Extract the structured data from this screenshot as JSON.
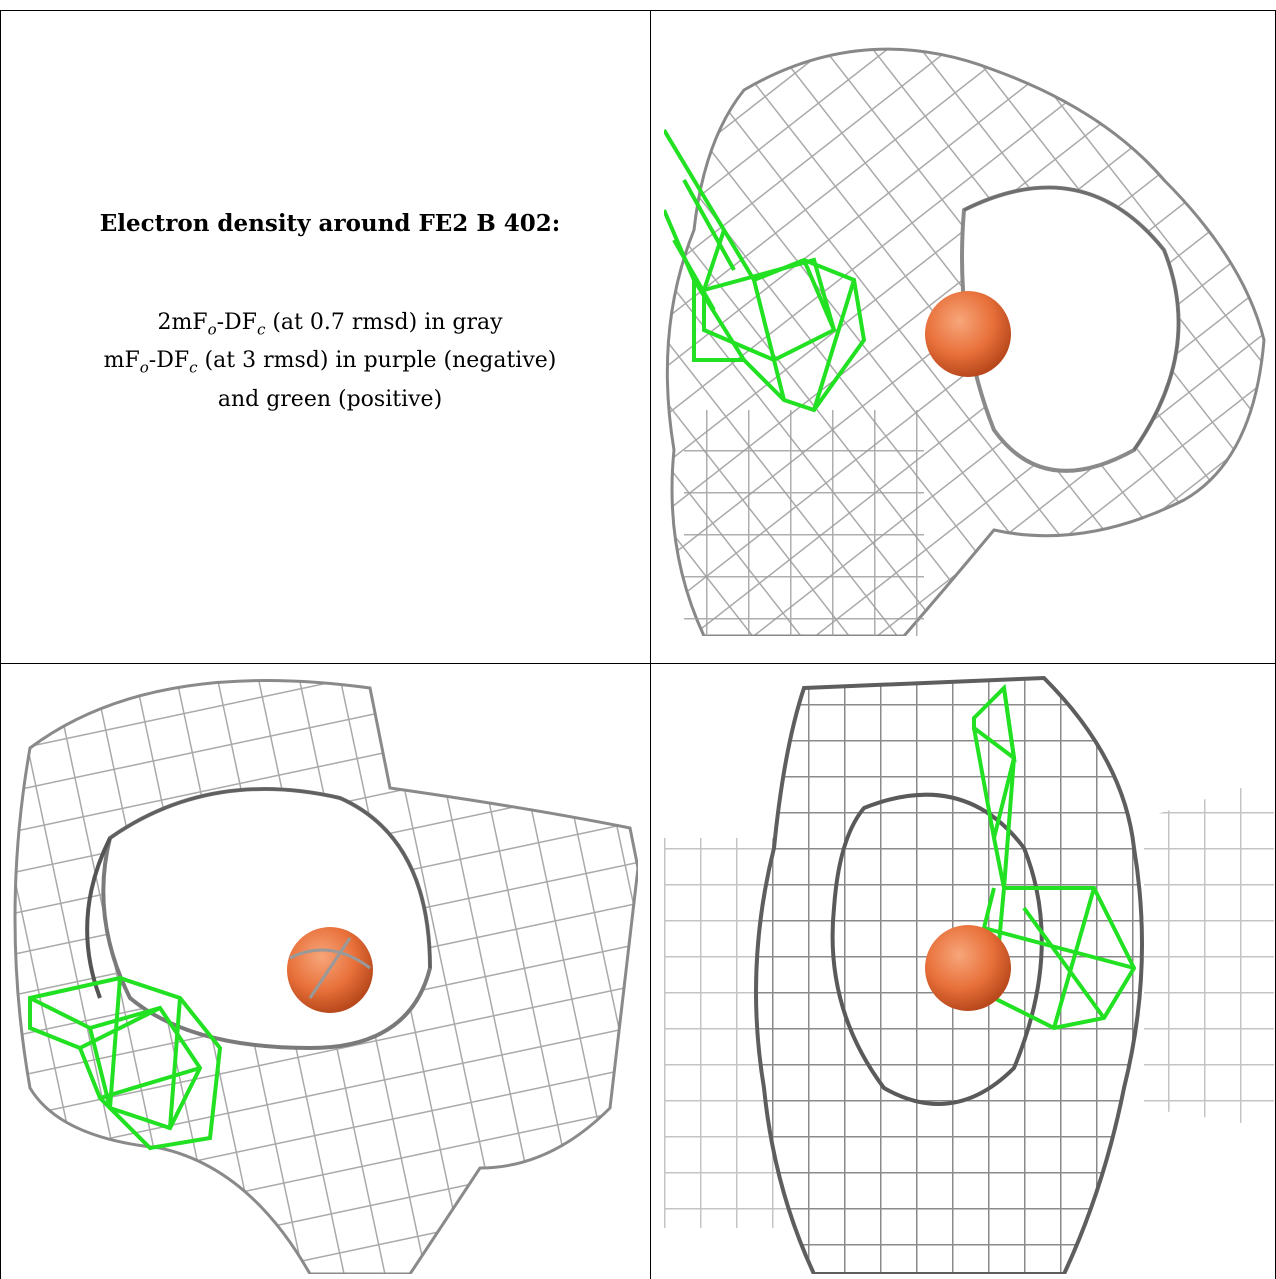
{
  "caption": {
    "title": "Electron density around FE2 B 402:",
    "line1": {
      "pre": "2mF",
      "sub1": "o",
      "mid": "-DF",
      "sub2": "c",
      "post": " (at 0.7 rmsd) in gray"
    },
    "line2": {
      "pre": "mF",
      "sub1": "o",
      "mid": "-DF",
      "sub2": "c",
      "post": " (at 3 rmsd) in purple (negative)"
    },
    "line3": "and green (positive)"
  },
  "colors": {
    "mesh_gray": "#a9a9a9",
    "mesh_dark": "#6e6e6e",
    "mesh_green": "#22e022",
    "atom": "#e8703a",
    "border": "#000000"
  },
  "panels": [
    {
      "name": "view-top-right",
      "icon": "density-mesh-view"
    },
    {
      "name": "view-bottom-left",
      "icon": "density-mesh-view"
    },
    {
      "name": "view-bottom-right",
      "icon": "density-mesh-view"
    }
  ]
}
